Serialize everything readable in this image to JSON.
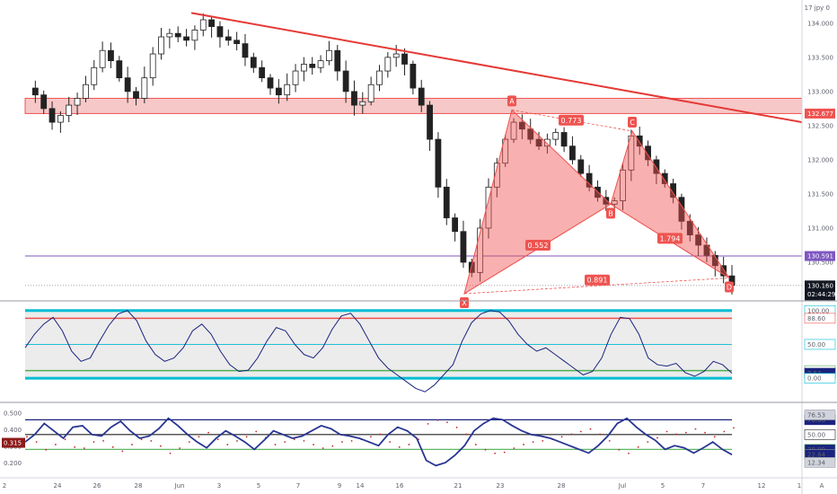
{
  "symbol_label": "17 jpy 0",
  "colors": {
    "bull": "#26a69a",
    "bear": "#222222",
    "trendline": "#e53935",
    "pattern": "#ef5350",
    "purple": "#7e57c2",
    "cyan": "#00bcd4",
    "green": "#4caf50",
    "navy": "#1a237e"
  },
  "chart_data": [
    {
      "type": "candlestick",
      "title": "",
      "y_ticks": [
        "134.000",
        "133.500",
        "133.000",
        "132.500",
        "132.000",
        "131.500",
        "131.000",
        "130.500"
      ],
      "ylim": [
        130.0,
        134.3
      ],
      "x_ticks": [
        "2",
        "24",
        "26",
        "28",
        "Jun",
        "3",
        "5",
        "7",
        "9",
        "14",
        "16",
        "21",
        "23",
        "28",
        "Jul",
        "5",
        "7",
        "12",
        "1",
        "A"
      ],
      "price_path": [
        133.05,
        132.95,
        132.75,
        132.55,
        132.65,
        132.8,
        132.9,
        133.1,
        133.35,
        133.6,
        133.45,
        133.2,
        133.0,
        132.9,
        133.2,
        133.55,
        133.8,
        133.85,
        133.8,
        133.75,
        133.9,
        134.05,
        133.95,
        133.8,
        133.75,
        133.7,
        133.5,
        133.35,
        133.2,
        133.05,
        132.95,
        133.1,
        133.3,
        133.4,
        133.35,
        133.45,
        133.6,
        133.3,
        133.0,
        132.8,
        132.85,
        133.1,
        133.3,
        133.5,
        133.55,
        133.4,
        133.05,
        132.8,
        132.3,
        131.6,
        131.15,
        130.95,
        130.5,
        130.35,
        131.0,
        131.6,
        131.95,
        132.3,
        132.55,
        132.45,
        132.3,
        132.2,
        132.3,
        132.4,
        132.2,
        132.0,
        131.8,
        131.6,
        131.45,
        131.35,
        131.4,
        131.85,
        132.35,
        132.2,
        132.0,
        131.8,
        131.65,
        131.45,
        131.1,
        130.9,
        130.75,
        130.6,
        130.45,
        130.3,
        130.16
      ],
      "key_prices": [
        {
          "label": "132.677",
          "value": 132.677,
          "color": "#ef5350"
        },
        {
          "label": "130.591",
          "value": 130.591,
          "color": "#7e57c2"
        },
        {
          "label": "130.160",
          "value": 130.16,
          "color": "#131722"
        }
      ],
      "countdown": "02:44:29",
      "resistance_zone": [
        132.677,
        132.9
      ],
      "trendline": {
        "from": {
          "x": "Jun",
          "y": 134.15
        },
        "to": {
          "x": "A",
          "y": 132.55
        }
      },
      "harmonic": {
        "points": [
          {
            "label": "X",
            "value": 130.04
          },
          {
            "label": "A",
            "value": 132.73
          },
          {
            "label": "B",
            "value": 131.35
          },
          {
            "label": "C",
            "value": 132.42
          },
          {
            "label": "D",
            "value": 130.27
          }
        ],
        "ratios": [
          "0.773",
          "0.552",
          "1.794",
          "0.891"
        ]
      }
    },
    {
      "type": "line",
      "title": "",
      "levels": [
        {
          "label": "100.00",
          "value": 100.0,
          "color": "#00bcd4"
        },
        {
          "label": "88.60",
          "value": 88.6,
          "color": "#ef5350"
        },
        {
          "label": "50.00",
          "value": 50.0,
          "color": "#00bcd4"
        },
        {
          "label": "11.30",
          "value": 11.3,
          "color": "#4caf50"
        },
        {
          "label": "7.53",
          "value": 7.53,
          "color": "#1a237e"
        },
        {
          "label": "0.00",
          "value": 0.0,
          "color": "#00bcd4"
        }
      ],
      "series": [
        {
          "values": [
            45,
            65,
            80,
            90,
            70,
            40,
            25,
            30,
            55,
            78,
            95,
            100,
            85,
            55,
            35,
            25,
            30,
            45,
            70,
            80,
            65,
            40,
            20,
            10,
            12,
            30,
            55,
            75,
            70,
            50,
            35,
            30,
            45,
            72,
            92,
            96,
            80,
            55,
            30,
            15,
            5,
            -5,
            -15,
            -20,
            -10,
            5,
            20,
            55,
            82,
            95,
            100,
            98,
            85,
            65,
            50,
            40,
            45,
            35,
            25,
            15,
            5,
            10,
            30,
            65,
            90,
            88,
            65,
            30,
            20,
            18,
            22,
            8,
            3,
            10,
            25,
            20,
            7.53
          ]
        }
      ]
    },
    {
      "type": "line",
      "title": "",
      "left_ticks": [
        "0.500",
        "0.400",
        "0.300",
        "0.200"
      ],
      "left_value_tag": "0.315",
      "levels": [
        {
          "label": "70.00",
          "value": 70.0,
          "color": "#1a237e"
        },
        {
          "label": "50.00",
          "value": 50.0,
          "color": "#222222"
        },
        {
          "label": "30.00",
          "value": 30.0,
          "color": "#4caf50"
        }
      ],
      "value_tags": [
        {
          "label": "76.53",
          "value": 76.53
        },
        {
          "label": "22.84",
          "value": 22.84
        },
        {
          "label": "12.34",
          "value": 12.34
        }
      ],
      "series": [
        {
          "values": [
            40,
            50,
            65,
            55,
            45,
            60,
            62,
            50,
            48,
            60,
            68,
            55,
            45,
            48,
            58,
            72,
            62,
            50,
            40,
            32,
            45,
            55,
            48,
            40,
            30,
            42,
            55,
            50,
            45,
            48,
            55,
            62,
            58,
            50,
            48,
            45,
            40,
            35,
            50,
            60,
            55,
            45,
            15,
            8,
            12,
            22,
            35,
            55,
            65,
            72,
            70,
            62,
            55,
            50,
            48,
            45,
            40,
            35,
            30,
            25,
            35,
            48,
            65,
            72,
            60,
            50,
            42,
            30,
            35,
            32,
            25,
            32,
            40,
            30,
            22.84
          ]
        }
      ]
    }
  ]
}
